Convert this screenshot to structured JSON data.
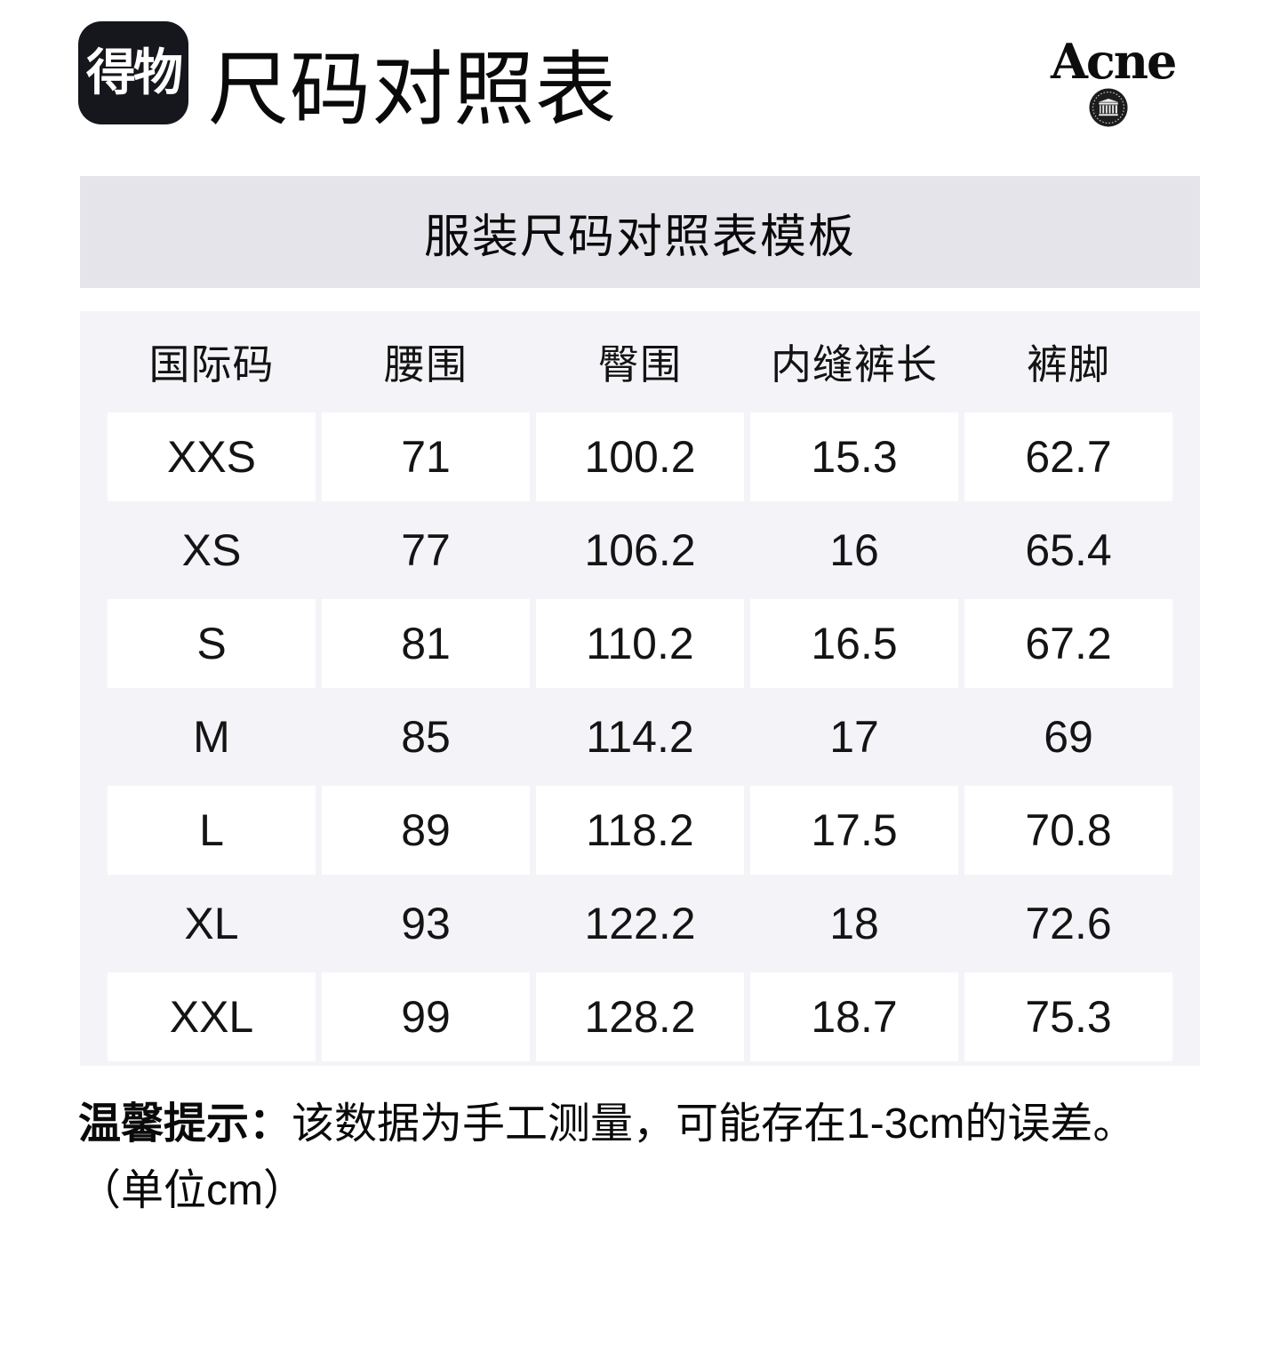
{
  "header": {
    "logo_text": "得物",
    "title": "尺码对照表",
    "brand_name": "Acne"
  },
  "banner": {
    "title": "服装尺码对照表模板"
  },
  "table": {
    "columns": [
      "国际码",
      "腰围",
      "臀围",
      "内缝裤长",
      "裤脚"
    ],
    "rows": [
      [
        "XXS",
        "71",
        "100.2",
        "15.3",
        "62.7"
      ],
      [
        "XS",
        "77",
        "106.2",
        "16",
        "65.4"
      ],
      [
        "S",
        "81",
        "110.2",
        "16.5",
        "67.2"
      ],
      [
        "M",
        "85",
        "114.2",
        "17",
        "69"
      ],
      [
        "L",
        "89",
        "118.2",
        "17.5",
        "70.8"
      ],
      [
        "XL",
        "93",
        "122.2",
        "18",
        "72.6"
      ],
      [
        "XXL",
        "99",
        "128.2",
        "18.7",
        "75.3"
      ]
    ]
  },
  "note": {
    "prefix": "温馨提示：",
    "text": "该数据为手工测量，可能存在1-3cm的误差。",
    "unit": "（单位cm）"
  },
  "colors": {
    "banner_bg": "#e5e4ea",
    "table_bg": "#f4f4f8",
    "logo_bg": "#16171d",
    "row_white": "#ffffff",
    "text": "#111111"
  }
}
